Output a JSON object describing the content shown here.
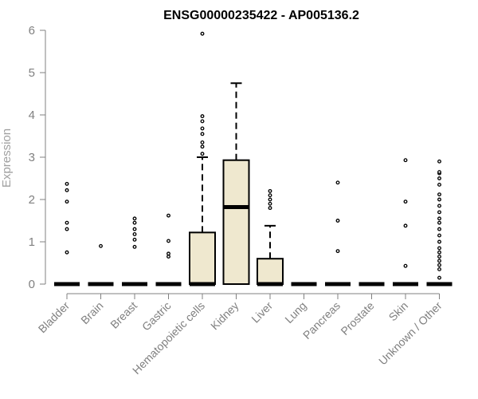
{
  "chart_data": {
    "type": "boxplot",
    "title": "ENSG00000235422 - AP005136.2",
    "ylabel": "Expression",
    "xlabel": "",
    "ylim": [
      0,
      6
    ],
    "yticks": [
      0,
      1,
      2,
      3,
      4,
      5,
      6
    ],
    "box_fill": "#efe8cf",
    "categories": [
      {
        "name": "Bladder",
        "q1": 0,
        "median": 0,
        "q3": 0,
        "whisker_low": 0,
        "whisker_high": 0,
        "outliers": [
          0.75,
          1.3,
          1.45,
          1.95,
          2.22,
          2.37
        ]
      },
      {
        "name": "Brain",
        "q1": 0,
        "median": 0,
        "q3": 0,
        "whisker_low": 0,
        "whisker_high": 0,
        "outliers": [
          0.9
        ]
      },
      {
        "name": "Breast",
        "q1": 0,
        "median": 0,
        "q3": 0,
        "whisker_low": 0,
        "whisker_high": 0,
        "outliers": [
          0.88,
          1.05,
          1.18,
          1.3,
          1.45,
          1.55
        ]
      },
      {
        "name": "Gastric",
        "q1": 0,
        "median": 0,
        "q3": 0,
        "whisker_low": 0,
        "whisker_high": 0,
        "outliers": [
          0.65,
          0.72,
          1.02,
          1.62
        ]
      },
      {
        "name": "Hematopoietic cells",
        "q1": 0,
        "median": 0,
        "q3": 1.22,
        "whisker_low": 0,
        "whisker_high": 3.0,
        "outliers": [
          3.08,
          3.25,
          3.35,
          3.55,
          3.68,
          3.85,
          3.97,
          5.92
        ]
      },
      {
        "name": "Kidney",
        "q1": 0,
        "median": 1.82,
        "q3": 2.93,
        "whisker_low": 0,
        "whisker_high": 4.75,
        "outliers": []
      },
      {
        "name": "Liver",
        "q1": 0,
        "median": 0,
        "q3": 0.6,
        "whisker_low": 0,
        "whisker_high": 1.38,
        "outliers": [
          1.8,
          1.9,
          2.0,
          2.1,
          2.2
        ]
      },
      {
        "name": "Lung",
        "q1": 0,
        "median": 0,
        "q3": 0,
        "whisker_low": 0,
        "whisker_high": 0,
        "outliers": []
      },
      {
        "name": "Pancreas",
        "q1": 0,
        "median": 0,
        "q3": 0,
        "whisker_low": 0,
        "whisker_high": 0,
        "outliers": [
          0.78,
          1.5,
          2.4
        ]
      },
      {
        "name": "Prostate",
        "q1": 0,
        "median": 0,
        "q3": 0,
        "whisker_low": 0,
        "whisker_high": 0,
        "outliers": []
      },
      {
        "name": "Skin",
        "q1": 0,
        "median": 0,
        "q3": 0,
        "whisker_low": 0,
        "whisker_high": 0,
        "outliers": [
          0.43,
          1.38,
          1.95,
          2.93
        ]
      },
      {
        "name": "Unknown / Other",
        "q1": 0,
        "median": 0,
        "q3": 0,
        "whisker_low": 0,
        "whisker_high": 0,
        "outliers": [
          0.15,
          0.35,
          0.45,
          0.55,
          0.65,
          0.75,
          0.85,
          1.0,
          1.15,
          1.3,
          1.45,
          1.55,
          1.7,
          1.85,
          2.0,
          2.12,
          2.35,
          2.5,
          2.62,
          2.65,
          2.9
        ]
      }
    ]
  }
}
